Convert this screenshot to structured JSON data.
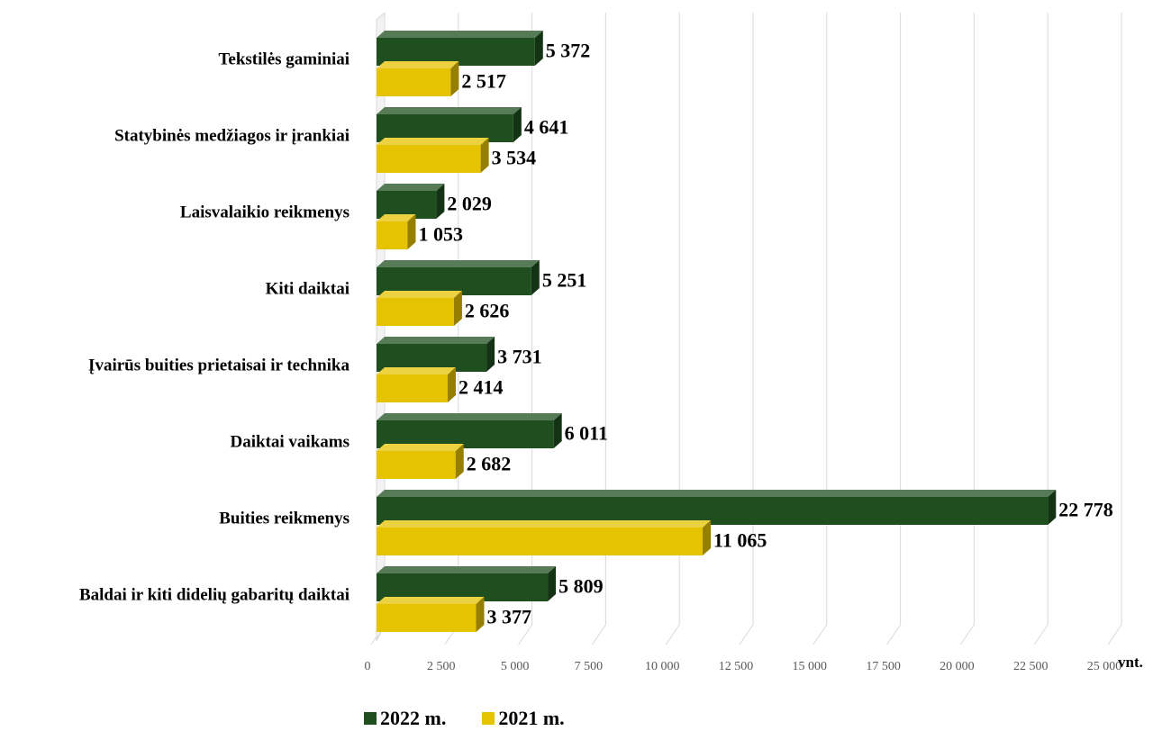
{
  "chart_data": {
    "type": "bar",
    "orientation": "horizontal",
    "categories": [
      "Tekstilės gaminiai",
      "Statybinės medžiagos ir įrankiai",
      "Laisvalaikio reikmenys",
      "Kiti daiktai",
      "Įvairūs buities prietaisai ir technika",
      "Daiktai vaikams",
      "Buities reikmenys",
      "Baldai ir kiti didelių gabaritų daiktai"
    ],
    "series": [
      {
        "name": "2022 m.",
        "color": "#1f4e1f",
        "values": [
          5372,
          4641,
          2029,
          5251,
          3731,
          6011,
          22778,
          5809
        ],
        "labels": [
          "5 372",
          "4 641",
          "2 029",
          "5 251",
          "3 731",
          "6 011",
          "22 778",
          "5 809"
        ]
      },
      {
        "name": "2021 m.",
        "color": "#e6c300",
        "values": [
          2517,
          3534,
          1053,
          2626,
          2414,
          2682,
          11065,
          3377
        ],
        "labels": [
          "2 517",
          "3 534",
          "1 053",
          "2 626",
          "2 414",
          "2 682",
          "11 065",
          "3 377"
        ]
      }
    ],
    "xlim": [
      0,
      25000
    ],
    "xticks": [
      0,
      2500,
      5000,
      7500,
      10000,
      12500,
      15000,
      17500,
      20000,
      22500,
      25000
    ],
    "xtick_labels": [
      "0",
      "2 500",
      "5 000",
      "7 500",
      "10 000",
      "12 500",
      "15 000",
      "17 500",
      "20 000",
      "22 500",
      "25 000"
    ],
    "xlabel": "vnt.",
    "grid": true,
    "legend_position": "bottom",
    "style": "3d"
  }
}
